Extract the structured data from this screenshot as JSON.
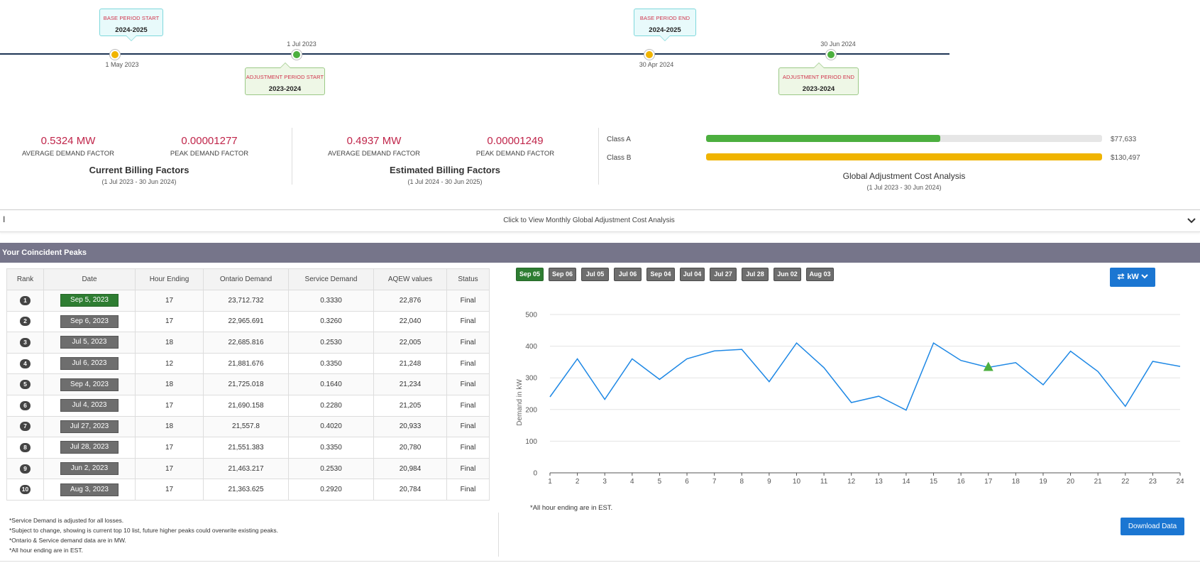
{
  "timeline": {
    "base_start": {
      "label": "BASE PERIOD START",
      "year": "2024-2025",
      "date": "1 May 2023",
      "color": "#f0b400"
    },
    "adj_start": {
      "label": "ADJUSTMENT PERIOD START",
      "year": "2023-2024",
      "date": "1 Jul 2023",
      "color": "#4caf3f"
    },
    "base_end": {
      "label": "BASE PERIOD END",
      "year": "2024-2025",
      "date": "30 Apr 2024",
      "color": "#f0b400"
    },
    "adj_end": {
      "label": "ADJUSTMENT PERIOD END",
      "year": "2023-2024",
      "date": "30 Jun 2024",
      "color": "#4caf3f"
    }
  },
  "current_billing": {
    "avg_value": "0.5324 MW",
    "avg_label": "AVERAGE DEMAND FACTOR",
    "peak_value": "0.00001277",
    "peak_label": "PEAK DEMAND FACTOR",
    "title": "Current Billing Factors",
    "range": "(1 Jul 2023 - 30 Jun 2024)"
  },
  "estimated_billing": {
    "avg_value": "0.4937 MW",
    "avg_label": "AVERAGE DEMAND FACTOR",
    "peak_value": "0.00001249",
    "peak_label": "PEAK DEMAND FACTOR",
    "title": "Estimated Billing Factors",
    "range": "(1 Jul 2024 - 30 Jun 2025)"
  },
  "ga_cost": {
    "title": "Global Adjustment Cost Analysis",
    "range": "(1 Jul 2023 - 30 Jun 2024)",
    "classes": [
      {
        "name": "Class A",
        "value": "$77,633",
        "fraction": 0.592,
        "color": "#4caf3f"
      },
      {
        "name": "Class B",
        "value": "$130,497",
        "fraction": 1.0,
        "color": "#f0b400"
      }
    ]
  },
  "accordion": {
    "text": "Click to View Monthly Global Adjustment Cost Analysis",
    "cursor": "I"
  },
  "peaks": {
    "header": "Your Coincident Peaks",
    "columns": [
      "Rank",
      "Date",
      "Hour Ending",
      "Ontario Demand",
      "Service Demand",
      "AQEW values",
      "Status"
    ],
    "rows": [
      {
        "rank": "1",
        "date": "Sep 5, 2023",
        "hour": "17",
        "ontario": "23,712.732",
        "service": "0.3330",
        "aqew": "22,876",
        "status": "Final"
      },
      {
        "rank": "2",
        "date": "Sep 6, 2023",
        "hour": "17",
        "ontario": "22,965.691",
        "service": "0.3260",
        "aqew": "22,040",
        "status": "Final"
      },
      {
        "rank": "3",
        "date": "Jul 5, 2023",
        "hour": "18",
        "ontario": "22,685.816",
        "service": "0.2530",
        "aqew": "22,005",
        "status": "Final"
      },
      {
        "rank": "4",
        "date": "Jul 6, 2023",
        "hour": "12",
        "ontario": "21,881.676",
        "service": "0.3350",
        "aqew": "21,248",
        "status": "Final"
      },
      {
        "rank": "5",
        "date": "Sep 4, 2023",
        "hour": "18",
        "ontario": "21,725.018",
        "service": "0.1640",
        "aqew": "21,234",
        "status": "Final"
      },
      {
        "rank": "6",
        "date": "Jul 4, 2023",
        "hour": "17",
        "ontario": "21,690.158",
        "service": "0.2280",
        "aqew": "21,205",
        "status": "Final"
      },
      {
        "rank": "7",
        "date": "Jul 27, 2023",
        "hour": "18",
        "ontario": "21,557.8",
        "service": "0.4020",
        "aqew": "20,933",
        "status": "Final"
      },
      {
        "rank": "8",
        "date": "Jul 28, 2023",
        "hour": "17",
        "ontario": "21,551.383",
        "service": "0.3350",
        "aqew": "20,780",
        "status": "Final"
      },
      {
        "rank": "9",
        "date": "Jun 2, 2023",
        "hour": "17",
        "ontario": "21,463.217",
        "service": "0.2530",
        "aqew": "20,984",
        "status": "Final"
      },
      {
        "rank": "10",
        "date": "Aug 3, 2023",
        "hour": "17",
        "ontario": "21,363.625",
        "service": "0.2920",
        "aqew": "20,784",
        "status": "Final"
      }
    ],
    "notes": [
      "*Service Demand is adjusted for all losses.",
      "*Subject to change, showing is current top 10 list, future higher peaks could overwrite existing peaks.",
      "*Ontario & Service demand data are in MW.",
      "*All hour ending are in EST."
    ]
  },
  "chart_controls": {
    "chips": [
      "Sep 05",
      "Sep 06",
      "Jul 05",
      "Jul 06",
      "Sep 04",
      "Jul 04",
      "Jul 27",
      "Jul 28",
      "Jun 02",
      "Aug 03"
    ],
    "active_chip": 0,
    "unit_label": "kW",
    "unit_icon": "swap-icon",
    "note": "*All hour ending are in EST.",
    "download_label": "Download Data"
  },
  "chart_data": {
    "type": "line",
    "x": [
      1,
      2,
      3,
      4,
      5,
      6,
      7,
      8,
      9,
      10,
      11,
      12,
      13,
      14,
      15,
      16,
      17,
      18,
      19,
      20,
      21,
      22,
      23,
      24
    ],
    "series": [
      {
        "values": [
          240,
          360,
          232,
          360,
          295,
          360,
          385,
          390,
          288,
          410,
          332,
          222,
          242,
          198,
          410,
          355,
          333,
          348,
          278,
          384,
          320,
          210,
          352,
          336
        ],
        "color": "#1e88e5"
      }
    ],
    "marker": {
      "x": 17,
      "y": 333,
      "shape": "triangle",
      "color": "#4caf3f"
    },
    "ylabel": "Demand in kW",
    "ylim": [
      0,
      500
    ],
    "yticks": [
      0,
      100,
      200,
      300,
      400,
      500
    ],
    "grid": true
  }
}
